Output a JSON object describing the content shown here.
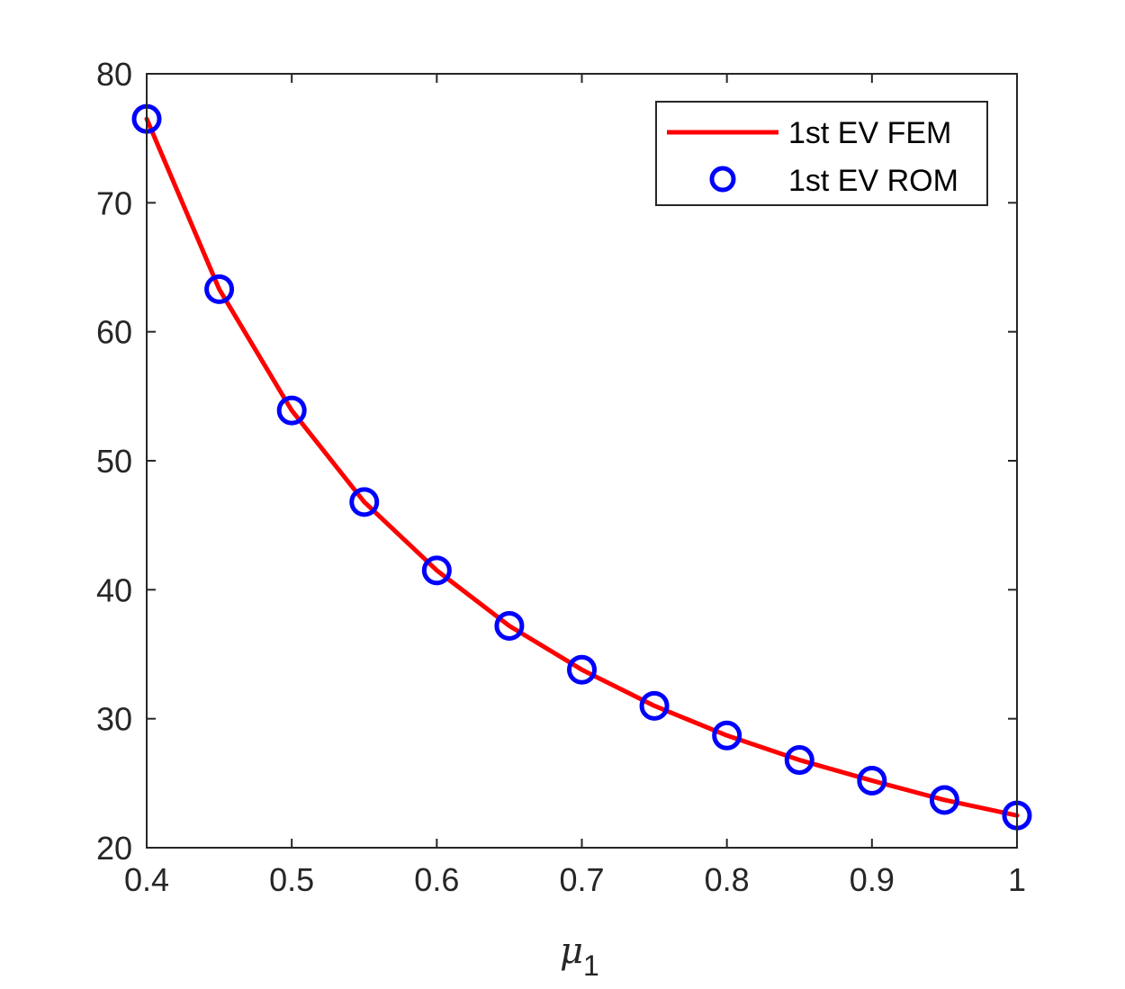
{
  "chart_data": {
    "type": "line",
    "title": "",
    "xlabel": "μ",
    "xlabel_sub": "1",
    "ylabel": "",
    "xlim": [
      0.4,
      1.0
    ],
    "ylim": [
      20,
      80
    ],
    "xticks": [
      0.4,
      0.5,
      0.6,
      0.7,
      0.8,
      0.9,
      1.0
    ],
    "xtick_labels": [
      "0.4",
      "0.5",
      "0.6",
      "0.7",
      "0.8",
      "0.9",
      "1"
    ],
    "yticks": [
      20,
      30,
      40,
      50,
      60,
      70,
      80
    ],
    "ytick_labels": [
      "20",
      "30",
      "40",
      "50",
      "60",
      "70",
      "80"
    ],
    "grid": false,
    "legend_position": "top-right",
    "series": [
      {
        "name": "1st EV FEM",
        "style": "line",
        "color": "#ff0000",
        "x": [
          0.4,
          0.45,
          0.5,
          0.55,
          0.6,
          0.65,
          0.7,
          0.75,
          0.8,
          0.85,
          0.9,
          0.95,
          1.0
        ],
        "y": [
          76.5,
          63.3,
          53.9,
          46.8,
          41.5,
          37.2,
          33.8,
          31.0,
          28.7,
          26.8,
          25.2,
          23.7,
          22.5
        ]
      },
      {
        "name": "1st EV ROM",
        "style": "marker-circle",
        "color": "#0000ff",
        "x": [
          0.4,
          0.45,
          0.5,
          0.55,
          0.6,
          0.65,
          0.7,
          0.75,
          0.8,
          0.85,
          0.9,
          0.95,
          1.0
        ],
        "y": [
          76.5,
          63.3,
          53.9,
          46.8,
          41.5,
          37.2,
          33.8,
          31.0,
          28.7,
          26.8,
          25.2,
          23.7,
          22.5
        ]
      }
    ]
  }
}
